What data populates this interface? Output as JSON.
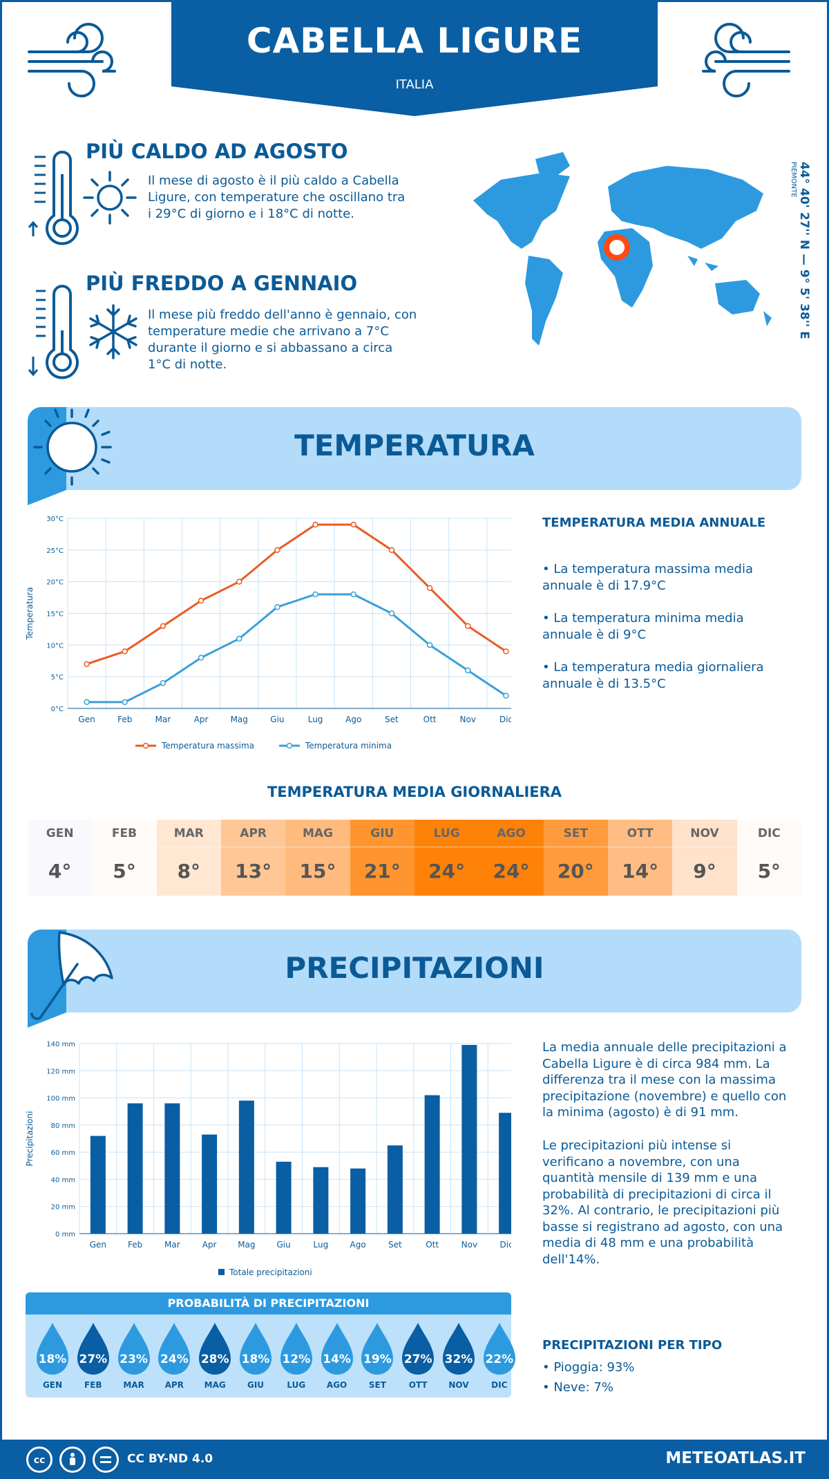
{
  "header": {
    "city": "CABELLA LIGURE",
    "country": "ITALIA"
  },
  "coords": {
    "main": "44° 40' 27'' N — 9° 5' 38'' E",
    "region": "PIEMONTE"
  },
  "warmest": {
    "title": "PIÙ CALDO AD AGOSTO",
    "text": "Il mese di agosto è il più caldo a Cabella Ligure, con temperature che oscillano tra i 29°C di giorno e i 18°C di notte."
  },
  "coldest": {
    "title": "PIÙ FREDDO A GENNAIO",
    "text": "Il mese più freddo dell'anno è gennaio, con temperature medie che arrivano a 7°C durante il giorno e si abbassano a circa 1°C di notte."
  },
  "temperature_section": {
    "title": "TEMPERATURA",
    "annual_title": "TEMPERATURA MEDIA ANNUALE",
    "bullets": [
      "• La temperatura massima media annuale è di 17.9°C",
      "• La temperatura minima media annuale è di 9°C",
      "• La temperatura media giornaliera annuale è di 13.5°C"
    ],
    "daily_title": "TEMPERATURA MEDIA GIORNALIERA",
    "daily": [
      {
        "m": "GEN",
        "v": "4°",
        "bg": "#f8f8fd"
      },
      {
        "m": "FEB",
        "v": "5°",
        "bg": "#fefbf8"
      },
      {
        "m": "MAR",
        "v": "8°",
        "bg": "#ffe7d2"
      },
      {
        "m": "APR",
        "v": "13°",
        "bg": "#ffc795"
      },
      {
        "m": "MAG",
        "v": "15°",
        "bg": "#ffbb7e"
      },
      {
        "m": "GIU",
        "v": "21°",
        "bg": "#ff952f"
      },
      {
        "m": "LUG",
        "v": "24°",
        "bg": "#ff8208"
      },
      {
        "m": "AGO",
        "v": "24°",
        "bg": "#ff8208"
      },
      {
        "m": "SET",
        "v": "20°",
        "bg": "#ff9b3c"
      },
      {
        "m": "OTT",
        "v": "14°",
        "bg": "#ffbd84"
      },
      {
        "m": "NOV",
        "v": "9°",
        "bg": "#ffe2cc"
      },
      {
        "m": "DIC",
        "v": "5°",
        "bg": "#fefbf8"
      }
    ]
  },
  "chart_data": [
    {
      "type": "line",
      "categories": [
        "Gen",
        "Feb",
        "Mar",
        "Apr",
        "Mag",
        "Giu",
        "Lug",
        "Ago",
        "Set",
        "Ott",
        "Nov",
        "Dic"
      ],
      "ylabel": "Temperatura",
      "ylim": [
        0,
        30
      ],
      "yticks": [
        "0°C",
        "5°C",
        "10°C",
        "15°C",
        "20°C",
        "25°C",
        "30°C"
      ],
      "grid": true,
      "legend_position": "bottom",
      "series": [
        {
          "name": "Temperatura massima",
          "color": "#ec5a22",
          "values": [
            7,
            9,
            13,
            17,
            20,
            25,
            29,
            29,
            25,
            19,
            13,
            9
          ]
        },
        {
          "name": "Temperatura minima",
          "color": "#3a9fd8",
          "values": [
            1,
            1,
            4,
            8,
            11,
            16,
            18,
            18,
            15,
            10,
            6,
            2
          ]
        }
      ]
    },
    {
      "type": "bar",
      "categories": [
        "Gen",
        "Feb",
        "Mar",
        "Apr",
        "Mag",
        "Giu",
        "Lug",
        "Ago",
        "Set",
        "Ott",
        "Nov",
        "Dic"
      ],
      "ylabel": "Precipitazioni",
      "ylim": [
        0,
        140
      ],
      "yticks": [
        "0 mm",
        "20 mm",
        "40 mm",
        "60 mm",
        "80 mm",
        "100 mm",
        "120 mm",
        "140 mm"
      ],
      "grid": true,
      "legend_position": "bottom",
      "series": [
        {
          "name": "Totale precipitazioni",
          "color": "#0a5ea3",
          "values": [
            72,
            96,
            96,
            73,
            98,
            53,
            49,
            48,
            65,
            102,
            139,
            89
          ]
        }
      ]
    }
  ],
  "precip_section": {
    "title": "PRECIPITAZIONI",
    "p1": "La media annuale delle precipitazioni a Cabella Ligure è di circa 984 mm. La differenza tra il mese con la massima precipitazione (novembre) e quello con la minima (agosto) è di 91 mm.",
    "p2": "Le precipitazioni più intense si verificano a novembre, con una quantità mensile di 139 mm e una probabilità di precipitazioni di circa il 32%. Al contrario, le precipitazioni più basse si registrano ad agosto, con una media di 48 mm e una probabilità dell'14%.",
    "prob_title": "PROBABILITÀ DI PRECIPITAZIONI",
    "prob": [
      {
        "m": "GEN",
        "v": "18%",
        "c": "#2d9ae0"
      },
      {
        "m": "FEB",
        "v": "27%",
        "c": "#0a5ea3"
      },
      {
        "m": "MAR",
        "v": "23%",
        "c": "#2d9ae0"
      },
      {
        "m": "APR",
        "v": "24%",
        "c": "#2d9ae0"
      },
      {
        "m": "MAG",
        "v": "28%",
        "c": "#0a5ea3"
      },
      {
        "m": "GIU",
        "v": "18%",
        "c": "#2d9ae0"
      },
      {
        "m": "LUG",
        "v": "12%",
        "c": "#2d9ae0"
      },
      {
        "m": "AGO",
        "v": "14%",
        "c": "#2d9ae0"
      },
      {
        "m": "SET",
        "v": "19%",
        "c": "#2d9ae0"
      },
      {
        "m": "OTT",
        "v": "27%",
        "c": "#0a5ea3"
      },
      {
        "m": "NOV",
        "v": "32%",
        "c": "#0a5ea3"
      },
      {
        "m": "DIC",
        "v": "22%",
        "c": "#2d9ae0"
      }
    ],
    "type_title": "PRECIPITAZIONI PER TIPO",
    "types": [
      "• Pioggia: 93%",
      "• Neve: 7%"
    ]
  },
  "footer": {
    "license": "CC BY-ND 4.0",
    "site": "METEOATLAS.IT"
  },
  "colors": {
    "dark_blue": "#0a5ea3",
    "light_blue": "#b3dcfb",
    "mid_blue": "#2d9ae0",
    "orange": "#ec5a22"
  }
}
